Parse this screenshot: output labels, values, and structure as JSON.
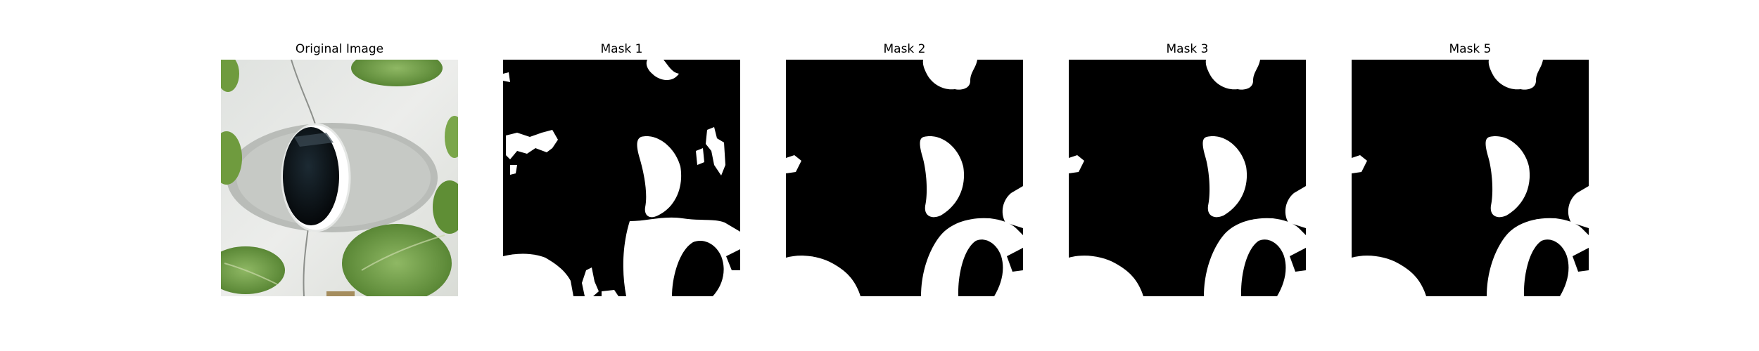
{
  "figure": {
    "panels": [
      {
        "title": "Original Image"
      },
      {
        "title": "Mask 1"
      },
      {
        "title": "Mask 2"
      },
      {
        "title": "Mask 3"
      },
      {
        "title": "Mask 5"
      }
    ]
  }
}
